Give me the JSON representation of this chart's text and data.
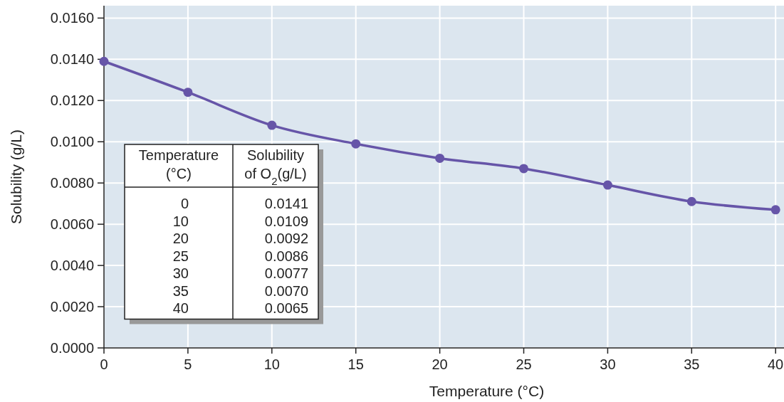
{
  "chart_data": {
    "type": "line",
    "xlabel": "Temperature (°C)",
    "ylabel": "Solubility (g/L)",
    "x": [
      0,
      5,
      10,
      15,
      20,
      25,
      30,
      35,
      40
    ],
    "series": [
      {
        "color": "#6655a8",
        "values": [
          0.0139,
          0.0124,
          0.0108,
          0.0099,
          0.0092,
          0.0087,
          0.0079,
          0.0071,
          0.0067
        ]
      }
    ],
    "marker": "circle",
    "grid": true,
    "xlim": [
      0,
      40.5
    ],
    "xticks": [
      0,
      5,
      10,
      15,
      20,
      25,
      30,
      35,
      40
    ],
    "ylim": [
      0,
      0.0166
    ],
    "yticks": [
      {
        "value": 0,
        "label": "0.0000"
      },
      {
        "value": 0.002,
        "label": "0.0020"
      },
      {
        "value": 0.004,
        "label": "0.0040"
      },
      {
        "value": 0.006,
        "label": "0.0060"
      },
      {
        "value": 0.008,
        "label": "0.0080"
      },
      {
        "value": 0.01,
        "label": "0.0100"
      },
      {
        "value": 0.012,
        "label": "0.0120"
      },
      {
        "value": 0.014,
        "label": "0.0140"
      },
      {
        "value": 0.016,
        "label": "0.0160"
      }
    ],
    "annotations": [
      "Temperature\n(°C)",
      "Solubility\nof O$_{2}$(g/L)",
      "0",
      "0.0141",
      "10",
      "0.0109",
      "20",
      "0.0092",
      "25",
      "0.0086",
      "30",
      "0.0077",
      "35",
      "0.0070",
      "40",
      "0.0065"
    ]
  }
}
